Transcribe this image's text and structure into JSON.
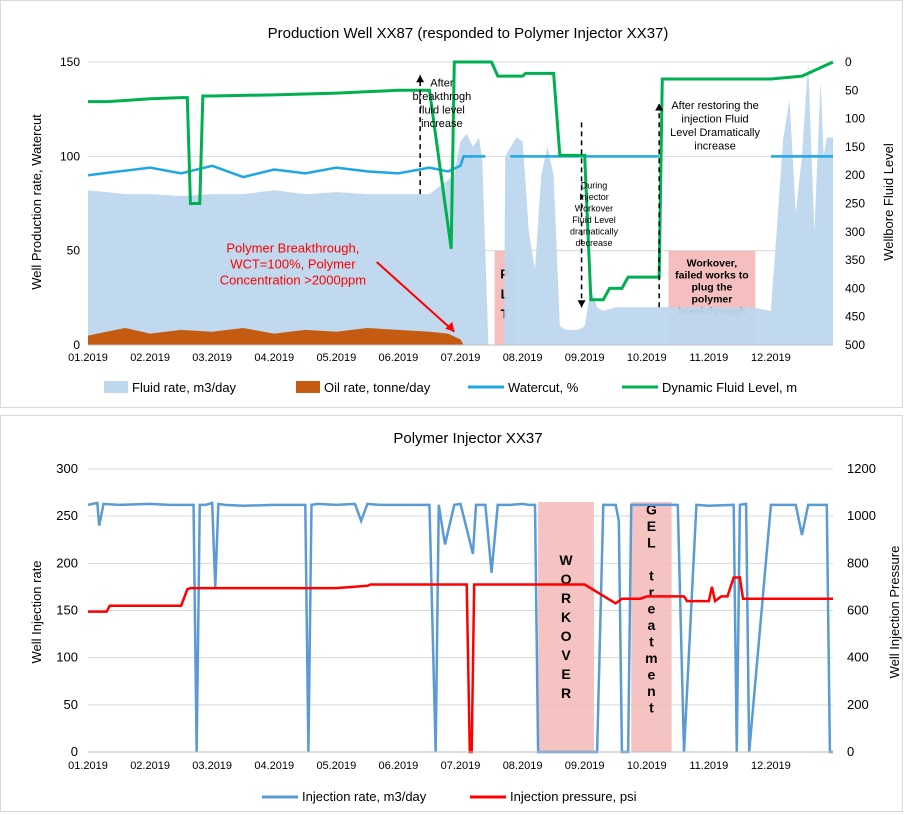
{
  "chart_data": [
    {
      "type": "area",
      "title": "Production Well XX87 (responded to Polymer Injector XX37)",
      "ylabel": "Well Production rate, Watercut",
      "y2label": "Wellbore Fluid Level",
      "ylim": [
        0,
        150
      ],
      "y2lim": [
        500,
        0
      ],
      "y2_inverted": true,
      "yticks": [
        "0",
        "50",
        "100",
        "150"
      ],
      "y2ticks": [
        "0",
        "50",
        "100",
        "150",
        "200",
        "250",
        "300",
        "350",
        "400",
        "450",
        "500"
      ],
      "xticks": [
        "01.2019",
        "02.2019",
        "03.2019",
        "04.2019",
        "05.2019",
        "06.2019",
        "07.2019",
        "08.2019",
        "09.2019",
        "10.2019",
        "11.2019",
        "12.2019"
      ],
      "legend_position": "bottom",
      "colors": {
        "fluid": "#bdd7ee",
        "oil": "#c55a11",
        "watercut": "#1ea7e1",
        "level": "#00b050",
        "shade": "#f4b8b8",
        "callout": "#ff0000"
      },
      "series": [
        {
          "name": "Fluid rate, m3/day",
          "axis": "left",
          "x": [
            0,
            0.3,
            0.6,
            1,
            1.5,
            2,
            2.5,
            3,
            3.5,
            4,
            4.5,
            5,
            5.5,
            5.9,
            5.95,
            6.0,
            6.1,
            6.2,
            6.3,
            6.35,
            6.45,
            6.7,
            6.72,
            6.9,
            7.0,
            7.05,
            7.1,
            7.2,
            7.3,
            7.4,
            7.5,
            7.6,
            7.7,
            7.8,
            7.9,
            8.0,
            8.1,
            8.2,
            8.3,
            8.5,
            8.7,
            9.0,
            9.2,
            9.5,
            9.7,
            10,
            10.3,
            10.5,
            10.7,
            11,
            11.2,
            11.3,
            11.4,
            11.5,
            11.6,
            11.7,
            11.8,
            11.85,
            11.9,
            12.0
          ],
          "y": [
            82,
            81,
            80,
            80,
            79,
            80,
            80,
            82,
            80,
            81,
            80,
            80,
            80,
            90,
            100,
            108,
            112,
            105,
            110,
            98,
            0,
            0,
            100,
            110,
            108,
            85,
            60,
            40,
            90,
            105,
            90,
            10,
            8,
            8,
            8,
            10,
            30,
            20,
            18,
            20,
            20,
            20,
            20,
            20,
            20,
            20,
            20,
            20,
            20,
            18,
            110,
            130,
            70,
            100,
            150,
            60,
            140,
            100,
            110,
            110
          ]
        },
        {
          "name": "Oil rate, tonne/day",
          "axis": "left",
          "x": [
            0,
            0.3,
            0.6,
            1,
            1.5,
            2,
            2.5,
            3,
            3.5,
            4,
            4.5,
            5,
            5.5,
            5.8,
            6.0,
            6.05
          ],
          "y": [
            5,
            7,
            9,
            6,
            8,
            7,
            9,
            6,
            8,
            7,
            9,
            8,
            7,
            6,
            3,
            0
          ]
        },
        {
          "name": "Watercut, %",
          "axis": "left",
          "x": [
            0,
            0.5,
            1,
            1.5,
            2,
            2.5,
            3,
            3.5,
            4,
            4.5,
            5,
            5.5,
            5.8,
            6.0,
            6.05,
            6.4,
            6.4,
            6.8,
            6.8,
            9.2,
            10.5,
            10.5,
            11.0,
            12.0
          ],
          "y": [
            90,
            92,
            94,
            91,
            95,
            89,
            93,
            91,
            94,
            92,
            91,
            94,
            92,
            95,
            100,
            100,
            null,
            null,
            100,
            100,
            null,
            null,
            100,
            100
          ]
        },
        {
          "name": "Dynamic Fluid Level, m",
          "axis": "right",
          "x": [
            0,
            0.3,
            0.6,
            1,
            1.5,
            1.6,
            1.65,
            1.8,
            1.85,
            2,
            3,
            4,
            5,
            5.5,
            5.85,
            5.9,
            6.5,
            6.6,
            7.0,
            7.05,
            7.5,
            7.6,
            8.0,
            8.1,
            8.3,
            8.4,
            8.6,
            8.7,
            9.2,
            9.25,
            10,
            10.5,
            11.0,
            11.5,
            12.0
          ],
          "y": [
            70,
            70,
            68,
            65,
            63,
            63,
            250,
            250,
            60,
            60,
            58,
            55,
            50,
            50,
            330,
            0,
            0,
            25,
            25,
            20,
            20,
            165,
            165,
            420,
            420,
            400,
            400,
            380,
            380,
            30,
            30,
            30,
            30,
            25,
            0
          ]
        }
      ],
      "shaded_regions": [
        {
          "x0": 6.55,
          "x1": 6.87,
          "label": "P\nL\nT"
        },
        {
          "x0": 9.35,
          "x1": 10.75,
          "label": "Workover,\nfailed works to\nplug the\npolymer\nbreakthrough"
        }
      ],
      "annotations": [
        "After breakthrogh fluid level increase",
        "During Injector Workover Fluid Level dramatically decrease",
        "After restoring the injection Fluid Level Dramatically increase",
        "Polymer Breakthrough, WCT=100%, Polymer Concentration >2000ppm"
      ]
    },
    {
      "type": "line",
      "title": "Polymer Injector XX37",
      "ylabel": "Well Injection rate",
      "y2label": "Well Injection Pressure",
      "ylim": [
        0,
        300
      ],
      "y2lim": [
        0,
        1200
      ],
      "yticks": [
        "0",
        "50",
        "100",
        "150",
        "200",
        "250",
        "300"
      ],
      "y2ticks": [
        "0",
        "200",
        "400",
        "600",
        "800",
        "1000",
        "1200"
      ],
      "xticks": [
        "01.2019",
        "02.2019",
        "03.2019",
        "04.2019",
        "05.2019",
        "06.2019",
        "07.2019",
        "08.2019",
        "09.2019",
        "10.2019",
        "11.2019",
        "12.2019"
      ],
      "legend_position": "bottom",
      "colors": {
        "rate": "#5b9bd5",
        "pressure": "#ff0000",
        "shade": "#f4b8b8"
      },
      "series": [
        {
          "name": "Injection rate, m3/day",
          "axis": "left",
          "x": [
            0,
            0.15,
            0.18,
            0.25,
            0.5,
            1,
            1.3,
            1.7,
            1.75,
            1.8,
            1.9,
            2.0,
            2.05,
            2.1,
            2.2,
            2.5,
            3.0,
            3.5,
            3.55,
            3.6,
            3.7,
            4.0,
            4.3,
            4.4,
            4.5,
            4.7,
            5.0,
            5.5,
            5.6,
            5.65,
            5.75,
            5.9,
            6.0,
            6.2,
            6.25,
            6.4,
            6.5,
            6.6,
            6.8,
            7.0,
            7.1,
            7.2,
            7.25,
            8.2,
            8.3,
            8.5,
            8.55,
            8.6,
            8.7,
            8.75,
            9.5,
            9.6,
            9.8,
            10.0,
            10.4,
            10.45,
            10.5,
            10.6,
            10.65,
            11.0,
            11.4,
            11.5,
            11.6,
            11.9,
            11.95,
            12.0
          ],
          "y": [
            262,
            264,
            240,
            263,
            262,
            263,
            262,
            262,
            0,
            262,
            262,
            264,
            175,
            263,
            262,
            261,
            262,
            262,
            0,
            262,
            263,
            262,
            263,
            245,
            263,
            262,
            262,
            262,
            0,
            262,
            220,
            262,
            263,
            210,
            262,
            262,
            190,
            262,
            262,
            263,
            262,
            262,
            0,
            0,
            262,
            262,
            245,
            0,
            0,
            262,
            262,
            0,
            262,
            261,
            262,
            0,
            262,
            263,
            0,
            262,
            262,
            230,
            262,
            262,
            0,
            0
          ]
        },
        {
          "name": "Injection pressure, psi",
          "axis": "right",
          "x": [
            0,
            0.3,
            0.35,
            1.5,
            1.6,
            1.65,
            3,
            4,
            4.5,
            4.55,
            6.1,
            6.15,
            6.18,
            6.22,
            6.3,
            7.0,
            7.5,
            8.0,
            8.5,
            8.6,
            8.9,
            9.0,
            9.2,
            9.4,
            9.6,
            9.65,
            10.0,
            10.05,
            10.1,
            10.2,
            10.3,
            10.4,
            10.5,
            10.55,
            11,
            12
          ],
          "y": [
            595,
            595,
            620,
            620,
            690,
            695,
            695,
            695,
            705,
            710,
            710,
            0,
            0,
            710,
            710,
            710,
            710,
            710,
            630,
            650,
            650,
            660,
            660,
            660,
            660,
            640,
            640,
            700,
            640,
            660,
            660,
            740,
            740,
            650,
            650,
            650
          ]
        }
      ],
      "shaded_regions": [
        {
          "x0": 7.25,
          "x1": 8.15,
          "label": "W\nO\nR\nK\nO\nV\nE\nR"
        },
        {
          "x0": 8.75,
          "x1": 9.4,
          "label": "G\nE\nL\n\nt\nr\ne\na\nt\nm\ne\nn\nt"
        }
      ]
    }
  ]
}
